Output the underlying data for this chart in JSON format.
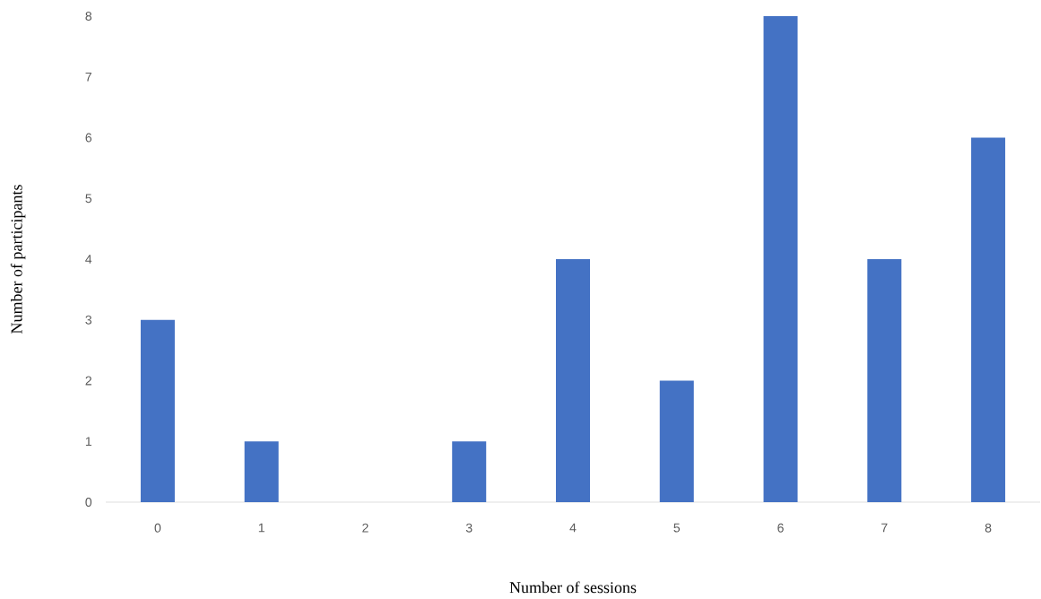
{
  "chart_data": {
    "type": "bar",
    "xlabel": "Number of sessions",
    "ylabel": "Number of participants",
    "categories": [
      "0",
      "1",
      "2",
      "3",
      "4",
      "5",
      "6",
      "7",
      "8"
    ],
    "values": [
      3,
      1,
      0,
      1,
      4,
      2,
      8,
      4,
      6
    ],
    "color": "#4472c4",
    "ylim": [
      0,
      8
    ],
    "yticks": [
      0,
      1,
      2,
      3,
      4,
      5,
      6,
      7,
      8
    ]
  }
}
